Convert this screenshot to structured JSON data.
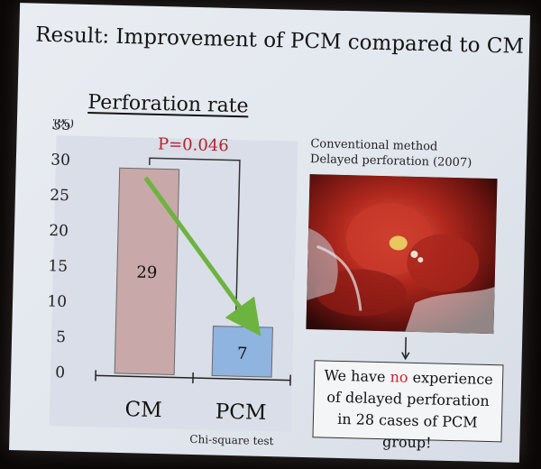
{
  "slide": {
    "title": "Result: Improvement of PCM compared to CM",
    "subtitle": "Perforation rate"
  },
  "chart_data": {
    "type": "bar",
    "title": "",
    "ylabel": "(%)",
    "xlabel": "",
    "categories": [
      "CM",
      "PCM"
    ],
    "values": [
      29,
      7
    ],
    "data_labels": [
      "29",
      "7"
    ],
    "ylim": [
      0,
      35
    ],
    "yticks": [
      0,
      5,
      10,
      15,
      20,
      25,
      30,
      35
    ],
    "bar_colors": [
      "#c8a8a8",
      "#8fb4e0"
    ],
    "p_value_label": "P=0.046",
    "p_value_color": "#b0262c",
    "trend_arrow_color": "#6db33f",
    "grid": false
  },
  "photo": {
    "caption_line1": "Conventional method",
    "caption_line2": "Delayed perforation (2007)"
  },
  "note": {
    "line1_before": "We have ",
    "line1_highlight": "no",
    "line1_after": " experience",
    "line2": "of delayed perforation",
    "line3": "in 28 cases of PCM group!"
  },
  "footer": {
    "test": "Chi-square test"
  }
}
